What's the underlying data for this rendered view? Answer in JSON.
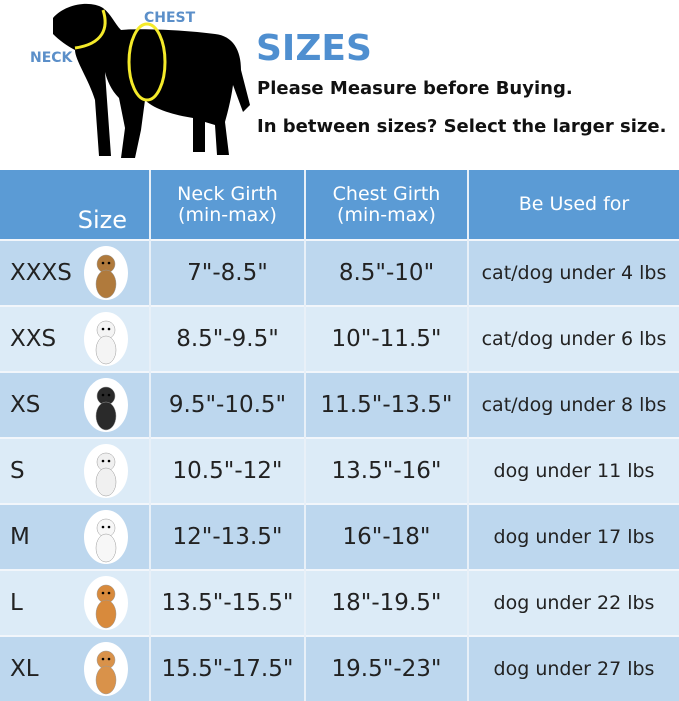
{
  "header": {
    "title": "SIZES",
    "line1": "Please Measure before Buying.",
    "line2": "In between sizes? Select the larger size.",
    "neck_label": "NECK",
    "chest_label": "CHEST"
  },
  "table": {
    "columns": [
      "Size",
      "Neck Girth (min-max)",
      "Chest Girth (min-max)",
      "Be Used for"
    ],
    "rows": [
      {
        "size": "XXXS",
        "neck": "7\"-8.5\"",
        "chest": "8.5\"-10\"",
        "use": "cat/dog under 4 lbs"
      },
      {
        "size": "XXS",
        "neck": "8.5\"-9.5\"",
        "chest": "10\"-11.5\"",
        "use": "cat/dog under 6 lbs"
      },
      {
        "size": "XS",
        "neck": "9.5\"-10.5\"",
        "chest": "11.5\"-13.5\"",
        "use": "cat/dog under 8 lbs"
      },
      {
        "size": "S",
        "neck": "10.5\"-12\"",
        "chest": "13.5\"-16\"",
        "use": "dog under 11 lbs"
      },
      {
        "size": "M",
        "neck": "12\"-13.5\"",
        "chest": "16\"-18\"",
        "use": "dog under 17 lbs"
      },
      {
        "size": "L",
        "neck": "13.5\"-15.5\"",
        "chest": "18\"-19.5\"",
        "use": "dog under 22 lbs"
      },
      {
        "size": "XL",
        "neck": "15.5\"-17.5\"",
        "chest": "19.5\"-23\"",
        "use": "dog under 27 lbs"
      }
    ]
  },
  "colors": {
    "header_bg": "#5b9bd5",
    "row_dark": "#bdd7ee",
    "row_light": "#dcebf7",
    "title": "#4f8fd0",
    "ring": "#f4ea2a"
  },
  "pet_colors": [
    "#b07a3c",
    "#f4f4f4",
    "#2a2a2a",
    "#f0f0f0",
    "#f7f7f7",
    "#d88a3c",
    "#d9924a"
  ]
}
